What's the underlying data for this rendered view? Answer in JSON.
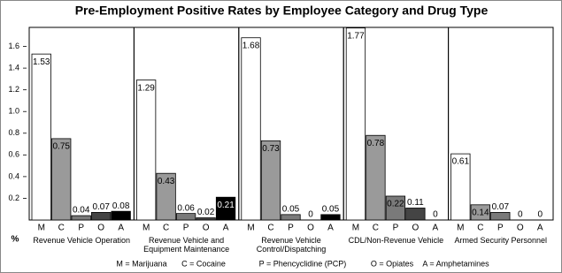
{
  "chart_data": {
    "type": "bar",
    "title": "Pre-Employment Positive Rates by Employee Category and Drug Type",
    "y_label": "%",
    "ylim": [
      0,
      1.8
    ],
    "yticks": [
      0.2,
      0.4,
      0.6,
      0.8,
      {
        "value": 1,
        "label": "1.0"
      },
      1.2,
      1.4,
      1.6
    ],
    "categories": [
      "M",
      "C",
      "P",
      "O",
      "A"
    ],
    "colors": [
      "#ffffff",
      "#9a9a9a",
      "#7a7a7a",
      "#444444",
      "#000000"
    ],
    "groups": [
      {
        "name": "Revenue Vehicle Operation",
        "values": [
          1.53,
          0.75,
          0.04,
          0.07,
          0.08
        ]
      },
      {
        "name": "Revenue Vehicle and Equipment Maintenance",
        "values": [
          1.29,
          0.43,
          0.06,
          0.02,
          0.21
        ]
      },
      {
        "name": "Revenue Vehicle Control/Dispatching",
        "values": [
          1.68,
          0.73,
          0.05,
          0,
          0.05
        ]
      },
      {
        "name": "CDL/Non-Revenue Vehicle",
        "values": [
          1.77,
          0.78,
          0.22,
          0.11,
          0
        ]
      },
      {
        "name": "Armed Security Personnel",
        "values": [
          0.61,
          0.14,
          0.07,
          0,
          0
        ]
      }
    ],
    "legend": [
      "M = Marijuana",
      "C = Cocaine",
      "P = Phencyclidine (PCP)",
      "O = Opiates",
      "A = Amphetamines"
    ]
  }
}
